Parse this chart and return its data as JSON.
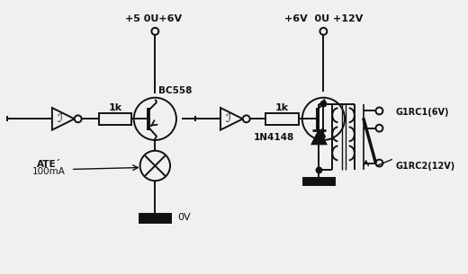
{
  "bg_color": "#f0f0f0",
  "line_color": "#111111",
  "text_color": "#111111",
  "circuit1": {
    "label_vcc": "+5 0U+6V",
    "label_transistor": "BC558",
    "label_resistor": "1k",
    "label_load1": "ATE´",
    "label_load2": "100mA",
    "label_gnd": "0V"
  },
  "circuit2": {
    "label_vcc": "+6V  0U +12V",
    "label_resistor": "1k",
    "label_diode": "1N4148",
    "label_relay1": "G1RC1(6V)",
    "label_relay2": "G1RC2(12V)"
  }
}
